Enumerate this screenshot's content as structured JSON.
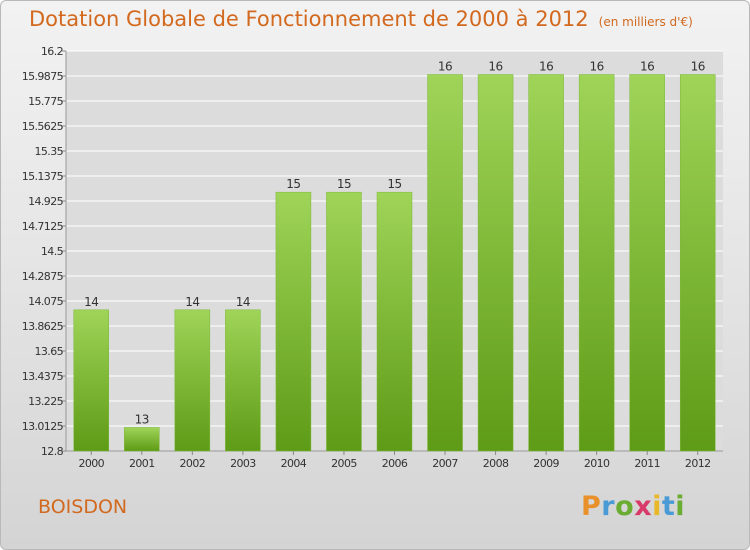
{
  "header": {
    "title": "Dotation Globale de Fonctionnement de 2000 à 2012",
    "unit": "(en milliers d'€)"
  },
  "footer": {
    "commune": "BOISDON",
    "brand_letters": [
      "P",
      "r",
      "o",
      "x",
      "i",
      "t",
      "i"
    ]
  },
  "colors": {
    "title": "#d2691e",
    "bar_top": "#9fd458",
    "bar_bottom": "#5e9b16",
    "grid": "#ffffff",
    "plot_background": "#dcdcdc"
  },
  "chart_data": {
    "type": "bar",
    "title": "Dotation Globale de Fonctionnement de 2000 à 2012",
    "xlabel": "",
    "ylabel": "",
    "categories": [
      "2000",
      "2001",
      "2002",
      "2003",
      "2004",
      "2005",
      "2006",
      "2007",
      "2008",
      "2009",
      "2010",
      "2011",
      "2012"
    ],
    "values": [
      14,
      13,
      14,
      14,
      15,
      15,
      15,
      16,
      16,
      16,
      16,
      16,
      16
    ],
    "data_labels": [
      "14",
      "13",
      "14",
      "14",
      "15",
      "15",
      "15",
      "16",
      "16",
      "16",
      "16",
      "16",
      "16"
    ],
    "ylim": [
      12.8,
      16.2
    ],
    "yticks": [
      "12.8",
      "13.0125",
      "13.225",
      "13.4375",
      "13.65",
      "13.8625",
      "14.075",
      "14.2875",
      "14.5",
      "14.7125",
      "14.925",
      "15.1375",
      "15.35",
      "15.5625",
      "15.775",
      "15.9875",
      "16.2"
    ],
    "grid": true,
    "legend": "none"
  }
}
